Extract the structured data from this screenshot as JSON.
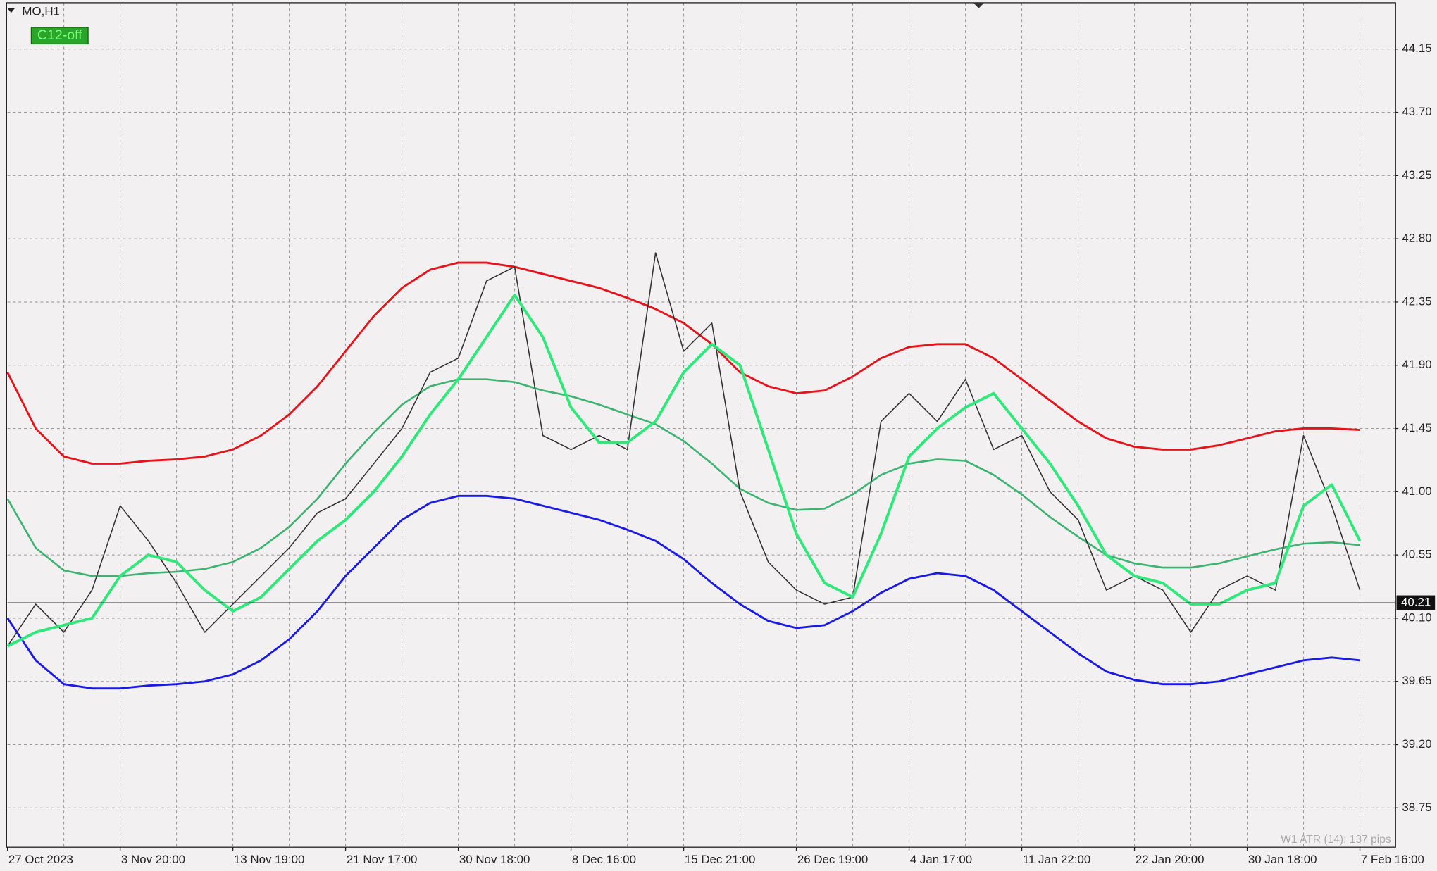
{
  "chart_data": {
    "type": "line",
    "symbol": "MO,H1",
    "indicator_label": "C12-off",
    "footer": "W1 ATR (14): 137 pips",
    "last": 40.21,
    "categories": [
      "27 Oct 2023",
      null,
      null,
      null,
      "3 Nov 20:00",
      null,
      null,
      null,
      "13 Nov 19:00",
      null,
      null,
      null,
      "21 Nov 17:00",
      null,
      null,
      null,
      "30 Nov 18:00",
      null,
      null,
      null,
      "8 Dec 16:00",
      null,
      null,
      null,
      "15 Dec 21:00",
      null,
      null,
      null,
      "26 Dec 19:00",
      null,
      null,
      null,
      "4 Jan 17:00",
      null,
      null,
      null,
      "11 Jan 22:00",
      null,
      null,
      null,
      "22 Jan 20:00",
      null,
      null,
      null,
      "30 Jan 18:00",
      null,
      null,
      null,
      "7 Feb 16:00"
    ],
    "series": [
      {
        "color": "#e8121a",
        "values": [
          41.85,
          41.45,
          41.25,
          41.2,
          41.2,
          41.22,
          41.23,
          41.25,
          41.3,
          41.4,
          41.55,
          41.75,
          42.0,
          42.25,
          42.45,
          42.58,
          42.63,
          42.63,
          42.6,
          42.55,
          42.5,
          42.45,
          42.38,
          42.3,
          42.2,
          42.05,
          41.85,
          41.75,
          41.7,
          41.72,
          41.82,
          41.95,
          42.03,
          42.05,
          42.05,
          41.95,
          41.8,
          41.65,
          41.5,
          41.38,
          41.32,
          41.3,
          41.3,
          41.33,
          41.38,
          41.43,
          41.45,
          41.45,
          41.44
        ]
      },
      {
        "color": "#3cb371",
        "values": [
          40.95,
          40.6,
          40.44,
          40.4,
          40.4,
          40.42,
          40.43,
          40.45,
          40.5,
          40.6,
          40.75,
          40.95,
          41.2,
          41.42,
          41.62,
          41.75,
          41.8,
          41.8,
          41.78,
          41.72,
          41.68,
          41.62,
          41.55,
          41.48,
          41.36,
          41.2,
          41.02,
          40.92,
          40.87,
          40.88,
          40.98,
          41.12,
          41.2,
          41.23,
          41.22,
          41.12,
          40.98,
          40.82,
          40.68,
          40.55,
          40.49,
          40.46,
          40.46,
          40.49,
          40.54,
          40.59,
          40.63,
          40.64,
          40.62
        ]
      },
      {
        "color": "#1a1ae6",
        "values": [
          40.1,
          39.8,
          39.63,
          39.6,
          39.6,
          39.62,
          39.63,
          39.65,
          39.7,
          39.8,
          39.95,
          40.15,
          40.4,
          40.6,
          40.8,
          40.92,
          40.97,
          40.97,
          40.95,
          40.9,
          40.85,
          40.8,
          40.73,
          40.65,
          40.52,
          40.35,
          40.2,
          40.08,
          40.03,
          40.05,
          40.15,
          40.28,
          40.38,
          40.42,
          40.4,
          40.3,
          40.15,
          40.0,
          39.85,
          39.72,
          39.66,
          39.63,
          39.63,
          39.65,
          39.7,
          39.75,
          39.8,
          39.82,
          39.8
        ]
      },
      {
        "color": "#333333",
        "values": [
          39.9,
          40.2,
          40.0,
          40.3,
          40.9,
          40.65,
          40.35,
          40.0,
          40.2,
          40.4,
          40.6,
          40.85,
          40.95,
          41.2,
          41.45,
          41.85,
          41.95,
          42.5,
          42.6,
          41.4,
          41.3,
          41.4,
          41.3,
          42.7,
          42.0,
          42.2,
          41.0,
          40.5,
          40.3,
          40.2,
          40.25,
          41.5,
          41.7,
          41.5,
          41.8,
          41.3,
          41.4,
          41.0,
          40.8,
          40.3,
          40.4,
          40.3,
          40.0,
          40.3,
          40.4,
          40.3,
          41.4,
          40.9,
          40.3
        ]
      },
      {
        "color": "#2ee87a",
        "values": [
          39.9,
          40.0,
          40.05,
          40.1,
          40.4,
          40.55,
          40.5,
          40.3,
          40.15,
          40.25,
          40.45,
          40.65,
          40.8,
          41.0,
          41.25,
          41.55,
          41.8,
          42.1,
          42.4,
          42.1,
          41.6,
          41.35,
          41.35,
          41.5,
          41.85,
          42.05,
          41.9,
          41.3,
          40.7,
          40.35,
          40.25,
          40.7,
          41.25,
          41.45,
          41.6,
          41.7,
          41.45,
          41.2,
          40.9,
          40.55,
          40.4,
          40.35,
          40.2,
          40.2,
          40.3,
          40.35,
          40.9,
          41.05,
          40.65
        ]
      }
    ],
    "ylim": [
      38.47,
      44.48
    ],
    "yticks": [
      38.75,
      {
        "value": 39.2,
        "label": "39.20"
      },
      39.65,
      {
        "value": 40.1,
        "label": "40.10"
      },
      40.55,
      {
        "value": 41,
        "label": "41.00"
      },
      41.45,
      {
        "value": 41.9,
        "label": "41.90"
      },
      42.35,
      {
        "value": 42.8,
        "label": "42.80"
      },
      43.25,
      {
        "value": 43.7,
        "label": "43.70"
      },
      44.15
    ],
    "grid": true
  }
}
